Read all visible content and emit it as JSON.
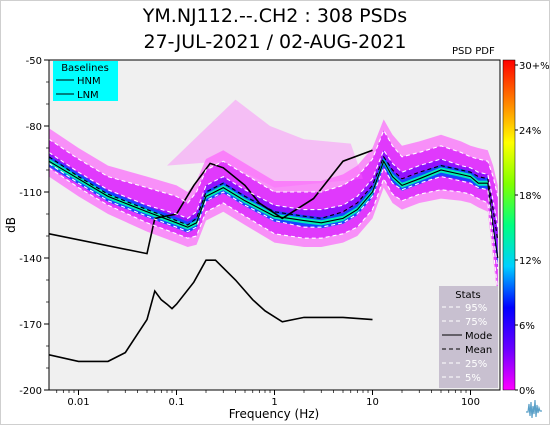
{
  "title_line1": "YM.NJ112.--.CH2 : 308 PSDs",
  "title_line2": "27-JUL-2021 / 02-AUG-2021",
  "psd_pdf_label": "PSD PDF",
  "icon": "waveform-logo-icon",
  "colors": {
    "background": "#f0f0f0",
    "baselines_box": "#00ffff",
    "stats_box": "#c8c0d0",
    "pdf_low": "#ff00ff",
    "pdf_high": "#ff0000"
  },
  "baselines": {
    "title": "Baselines",
    "items": [
      "HNM",
      "LNM"
    ]
  },
  "stats": {
    "title": "Stats",
    "items": [
      {
        "label": "95%",
        "style": "dash",
        "color": "#ffffff"
      },
      {
        "label": "75%",
        "style": "dash",
        "color": "#ffffff"
      },
      {
        "label": "Mode",
        "style": "solid",
        "color": "#000000"
      },
      {
        "label": "Mean",
        "style": "dash",
        "color": "#000000"
      },
      {
        "label": "25%",
        "style": "dash",
        "color": "#ffffff"
      },
      {
        "label": "5%",
        "style": "dash",
        "color": "#ffffff"
      }
    ]
  },
  "colorbar": {
    "tick_labels": [
      "30+%",
      "24%",
      "18%",
      "12%",
      "6%",
      "0%"
    ],
    "colors": [
      "#ff00ff",
      "#6a00ff",
      "#0000ff",
      "#00d0ff",
      "#00ff80",
      "#80ff00",
      "#ffff00",
      "#ff8000",
      "#ff0000"
    ]
  },
  "chart_data": {
    "type": "line",
    "title": "YM.NJ112.--.CH2 : 308 PSDs",
    "subtitle": "27-JUL-2021 / 02-AUG-2021",
    "xlabel": "Frequency (Hz)",
    "ylabel": "dB",
    "xscale": "log",
    "xlim": [
      0.005,
      200
    ],
    "ylim": [
      -200,
      -50
    ],
    "x_ticks": [
      0.01,
      0.1,
      1,
      10,
      100
    ],
    "x_tick_labels": [
      "0.01",
      "0.1",
      "1",
      "10",
      "100"
    ],
    "y_ticks": [
      -200,
      -170,
      -140,
      -110,
      -80,
      -50
    ],
    "y_tick_labels": [
      "-200",
      "-170",
      "-140",
      "-110",
      "-80",
      "-50"
    ],
    "grid": false,
    "legend_placement": "top-left (Baselines) and bottom-right (Stats)",
    "series": [
      {
        "name": "HNM",
        "color": "#000000",
        "x": [
          0.005,
          0.05,
          0.06,
          0.1,
          0.15,
          0.22,
          0.3,
          0.5,
          0.7,
          1.2,
          2.5,
          5,
          10
        ],
        "y": [
          -129,
          -138,
          -122,
          -120,
          -107,
          -97,
          -99,
          -107,
          -115,
          -122,
          -113,
          -96,
          -91
        ]
      },
      {
        "name": "LNM",
        "color": "#000000",
        "x": [
          0.005,
          0.01,
          0.02,
          0.03,
          0.05,
          0.06,
          0.07,
          0.08,
          0.09,
          0.1,
          0.15,
          0.2,
          0.25,
          0.4,
          0.6,
          0.8,
          1.2,
          2,
          5,
          10
        ],
        "y": [
          -184,
          -187,
          -187,
          -183,
          -168,
          -155,
          -159,
          -161,
          -163,
          -161,
          -151,
          -141,
          -141,
          -150,
          -159,
          -164,
          -169,
          -167,
          -167,
          -168
        ]
      },
      {
        "name": "Mode",
        "color": "#000000",
        "x": [
          0.005,
          0.01,
          0.02,
          0.05,
          0.1,
          0.13,
          0.16,
          0.2,
          0.3,
          0.5,
          1,
          2,
          3,
          5,
          7,
          10,
          13,
          16,
          20,
          30,
          50,
          80,
          100,
          120,
          150,
          170,
          190
        ],
        "y": [
          -96,
          -104,
          -112,
          -119,
          -124,
          -126,
          -124,
          -112,
          -108,
          -114,
          -121,
          -123,
          -124,
          -122,
          -118,
          -110,
          -96,
          -103,
          -107,
          -104,
          -100,
          -102,
          -103,
          -106,
          -106,
          -126,
          -140
        ]
      },
      {
        "name": "Mean",
        "color": "#000000",
        "x": [
          0.005,
          0.01,
          0.02,
          0.05,
          0.1,
          0.13,
          0.16,
          0.2,
          0.3,
          0.5,
          1,
          2,
          3,
          5,
          7,
          10,
          13,
          16,
          20,
          30,
          50,
          80,
          100,
          120,
          150,
          170,
          190
        ],
        "y": [
          -94,
          -103,
          -111,
          -118,
          -123,
          -125,
          -122,
          -110,
          -106,
          -112,
          -119,
          -121,
          -122,
          -119,
          -115,
          -107,
          -94,
          -100,
          -104,
          -101,
          -98,
          -100,
          -101,
          -103,
          -104,
          -118,
          -132
        ]
      },
      {
        "name": "95%",
        "color": "#ffffff",
        "x": [
          0.005,
          0.01,
          0.02,
          0.05,
          0.1,
          0.13,
          0.16,
          0.2,
          0.3,
          0.5,
          1,
          2,
          3,
          5,
          7,
          10,
          13,
          16,
          20,
          30,
          50,
          80,
          100,
          120,
          150,
          170,
          190
        ],
        "y": [
          -86,
          -95,
          -103,
          -108,
          -112,
          -115,
          -110,
          -100,
          -96,
          -102,
          -110,
          -110,
          -110,
          -107,
          -103,
          -95,
          -82,
          -89,
          -94,
          -92,
          -89,
          -92,
          -94,
          -95,
          -96,
          -103,
          -112
        ]
      },
      {
        "name": "75%",
        "color": "#ffffff",
        "x": [
          0.005,
          0.01,
          0.02,
          0.05,
          0.1,
          0.13,
          0.16,
          0.2,
          0.3,
          0.5,
          1,
          2,
          3,
          5,
          7,
          10,
          13,
          16,
          20,
          30,
          50,
          80,
          100,
          120,
          150,
          170,
          190
        ],
        "y": [
          -92,
          -101,
          -109,
          -116,
          -120,
          -122,
          -119,
          -107,
          -103,
          -109,
          -116,
          -118,
          -118,
          -116,
          -112,
          -104,
          -91,
          -97,
          -101,
          -98,
          -95,
          -98,
          -99,
          -101,
          -102,
          -114,
          -126
        ]
      },
      {
        "name": "25%",
        "color": "#ffffff",
        "x": [
          0.005,
          0.01,
          0.02,
          0.05,
          0.1,
          0.13,
          0.16,
          0.2,
          0.3,
          0.5,
          1,
          2,
          3,
          5,
          7,
          10,
          13,
          16,
          20,
          30,
          50,
          80,
          100,
          120,
          150,
          170,
          190
        ],
        "y": [
          -97,
          -106,
          -114,
          -121,
          -126,
          -128,
          -126,
          -114,
          -110,
          -116,
          -123,
          -126,
          -126,
          -124,
          -120,
          -112,
          -99,
          -106,
          -109,
          -106,
          -103,
          -105,
          -106,
          -108,
          -109,
          -129,
          -145
        ]
      },
      {
        "name": "5%",
        "color": "#ffffff",
        "x": [
          0.005,
          0.01,
          0.02,
          0.05,
          0.1,
          0.13,
          0.16,
          0.2,
          0.3,
          0.5,
          1,
          2,
          3,
          5,
          7,
          10,
          13,
          16,
          20,
          30,
          50,
          80,
          100,
          120,
          150,
          170,
          190
        ],
        "y": [
          -99,
          -108,
          -116,
          -124,
          -129,
          -131,
          -130,
          -119,
          -115,
          -121,
          -129,
          -131,
          -131,
          -129,
          -126,
          -118,
          -104,
          -111,
          -114,
          -111,
          -109,
          -110,
          -111,
          -113,
          -115,
          -136,
          -155
        ]
      }
    ]
  }
}
